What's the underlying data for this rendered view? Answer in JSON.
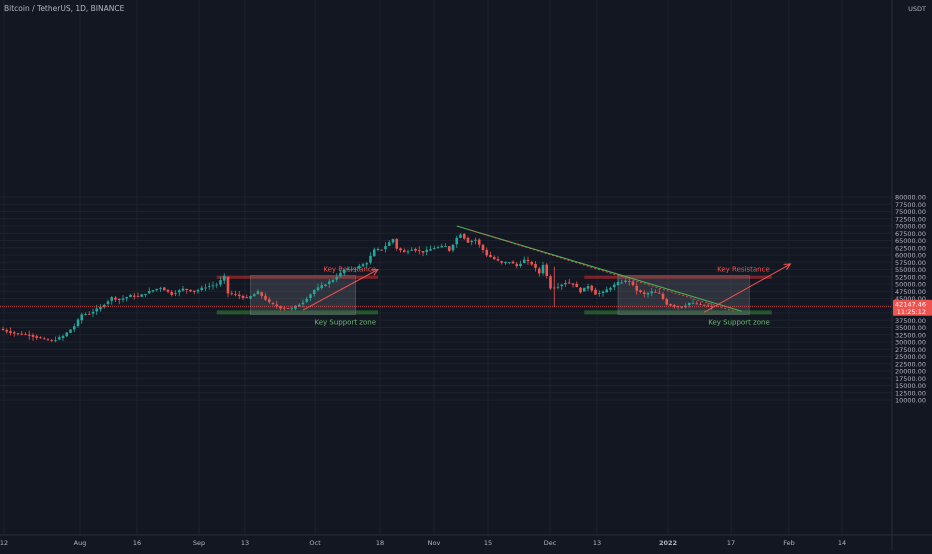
{
  "header": {
    "title": "Bitcoin / TetherUS, 1D, BINANCE"
  },
  "price_axis": {
    "currency": "USDT"
  },
  "last_price": {
    "value": "42147.46",
    "countdown": "11:25:12"
  },
  "chart_data": {
    "type": "candlestick",
    "symbol": "BTC/USDT",
    "interval": "1D",
    "exchange": "BINANCE",
    "ylim": [
      10000,
      82500
    ],
    "y_ticks": [
      10000,
      12500,
      15000,
      17500,
      20000,
      22500,
      25000,
      27500,
      30000,
      32500,
      35000,
      37500,
      40000,
      42500,
      45000,
      47500,
      50000,
      52500,
      55000,
      57500,
      60000,
      62500,
      65000,
      67500,
      70000,
      72500,
      75000,
      77500,
      80000
    ],
    "x_labels": [
      "12",
      "Aug",
      "16",
      "Sep",
      "13",
      "Oct",
      "18",
      "Nov",
      "15",
      "Dec",
      "13",
      "2022",
      "17",
      "Feb",
      "14"
    ],
    "last_price": 42147.46,
    "price_path": [
      [
        0,
        34500
      ],
      [
        4,
        33000
      ],
      [
        8,
        32400
      ],
      [
        11,
        31200
      ],
      [
        14,
        30300
      ],
      [
        17,
        32000
      ],
      [
        20,
        35500
      ],
      [
        22,
        39500
      ],
      [
        24,
        39800
      ],
      [
        27,
        42000
      ],
      [
        30,
        45300
      ],
      [
        32,
        44500
      ],
      [
        35,
        46000
      ],
      [
        37,
        45600
      ],
      [
        40,
        47400
      ],
      [
        43,
        48800
      ],
      [
        46,
        46500
      ],
      [
        49,
        48300
      ],
      [
        52,
        47400
      ],
      [
        55,
        49000
      ],
      [
        58,
        49800
      ],
      [
        60,
        52500
      ],
      [
        61,
        46800
      ],
      [
        63,
        46300
      ],
      [
        66,
        45000
      ],
      [
        69,
        47200
      ],
      [
        72,
        43500
      ],
      [
        75,
        41800
      ],
      [
        78,
        41500
      ],
      [
        81,
        43800
      ],
      [
        84,
        47900
      ],
      [
        86,
        49300
      ],
      [
        89,
        51500
      ],
      [
        92,
        54800
      ],
      [
        95,
        55400
      ],
      [
        98,
        57400
      ],
      [
        100,
        61700
      ],
      [
        102,
        62000
      ],
      [
        105,
        65500
      ],
      [
        106,
        62300
      ],
      [
        108,
        60900
      ],
      [
        110,
        62100
      ],
      [
        113,
        61000
      ],
      [
        116,
        62500
      ],
      [
        119,
        63000
      ],
      [
        120,
        61600
      ],
      [
        122,
        65900
      ],
      [
        123,
        67300
      ],
      [
        125,
        64500
      ],
      [
        127,
        65300
      ],
      [
        128,
        63500
      ],
      [
        130,
        60000
      ],
      [
        132,
        58600
      ],
      [
        134,
        57200
      ],
      [
        136,
        57700
      ],
      [
        138,
        56200
      ],
      [
        140,
        58300
      ],
      [
        142,
        56900
      ],
      [
        144,
        53700
      ],
      [
        145,
        56700
      ],
      [
        147,
        48700
      ],
      [
        149,
        49300
      ],
      [
        151,
        50500
      ],
      [
        153,
        50000
      ],
      [
        155,
        47400
      ],
      [
        157,
        49400
      ],
      [
        159,
        46600
      ],
      [
        161,
        47100
      ],
      [
        163,
        48900
      ],
      [
        165,
        50400
      ],
      [
        167,
        51000
      ],
      [
        168,
        50900
      ],
      [
        170,
        47800
      ],
      [
        172,
        46400
      ],
      [
        174,
        47300
      ],
      [
        176,
        46600
      ],
      [
        178,
        43100
      ],
      [
        180,
        42400
      ],
      [
        182,
        42000
      ],
      [
        184,
        43500
      ],
      [
        186,
        43100
      ],
      [
        188,
        42600
      ],
      [
        190,
        42100
      ]
    ],
    "annotations": [
      {
        "type": "zone",
        "label": "Key Resistance",
        "color": "#b2282e",
        "x_range": [
          58,
          99
        ],
        "y_range": [
          51800,
          52900
        ]
      },
      {
        "type": "zone",
        "label": "Key Support zone",
        "color": "#2e7d32",
        "x_range": [
          58,
          99
        ],
        "y_range": [
          39500,
          40900
        ]
      },
      {
        "type": "zone",
        "label": "Key Resistance",
        "color": "#b2282e",
        "x_range": [
          156,
          204
        ],
        "y_range": [
          51800,
          52900
        ]
      },
      {
        "type": "zone",
        "label": "Key Support zone",
        "color": "#2e7d32",
        "x_range": [
          156,
          204
        ],
        "y_range": [
          39500,
          40900
        ]
      },
      {
        "type": "trendline",
        "color": "#4caf50",
        "from": [
          121,
          70000
        ],
        "to": [
          197,
          40600
        ]
      },
      {
        "type": "arrow",
        "color": "#ef5350",
        "from": [
          80,
          41000
        ],
        "to": [
          100,
          55000
        ]
      },
      {
        "type": "arrow",
        "color": "#ef5350",
        "from": [
          187,
          40300
        ],
        "to": [
          210,
          56900
        ]
      }
    ]
  },
  "colors": {
    "background": "#131722",
    "up": "#26a69a",
    "down": "#ef5350",
    "grid": "#1e222d",
    "axis_text": "#b2b5be",
    "price_line": "#ef5350"
  }
}
